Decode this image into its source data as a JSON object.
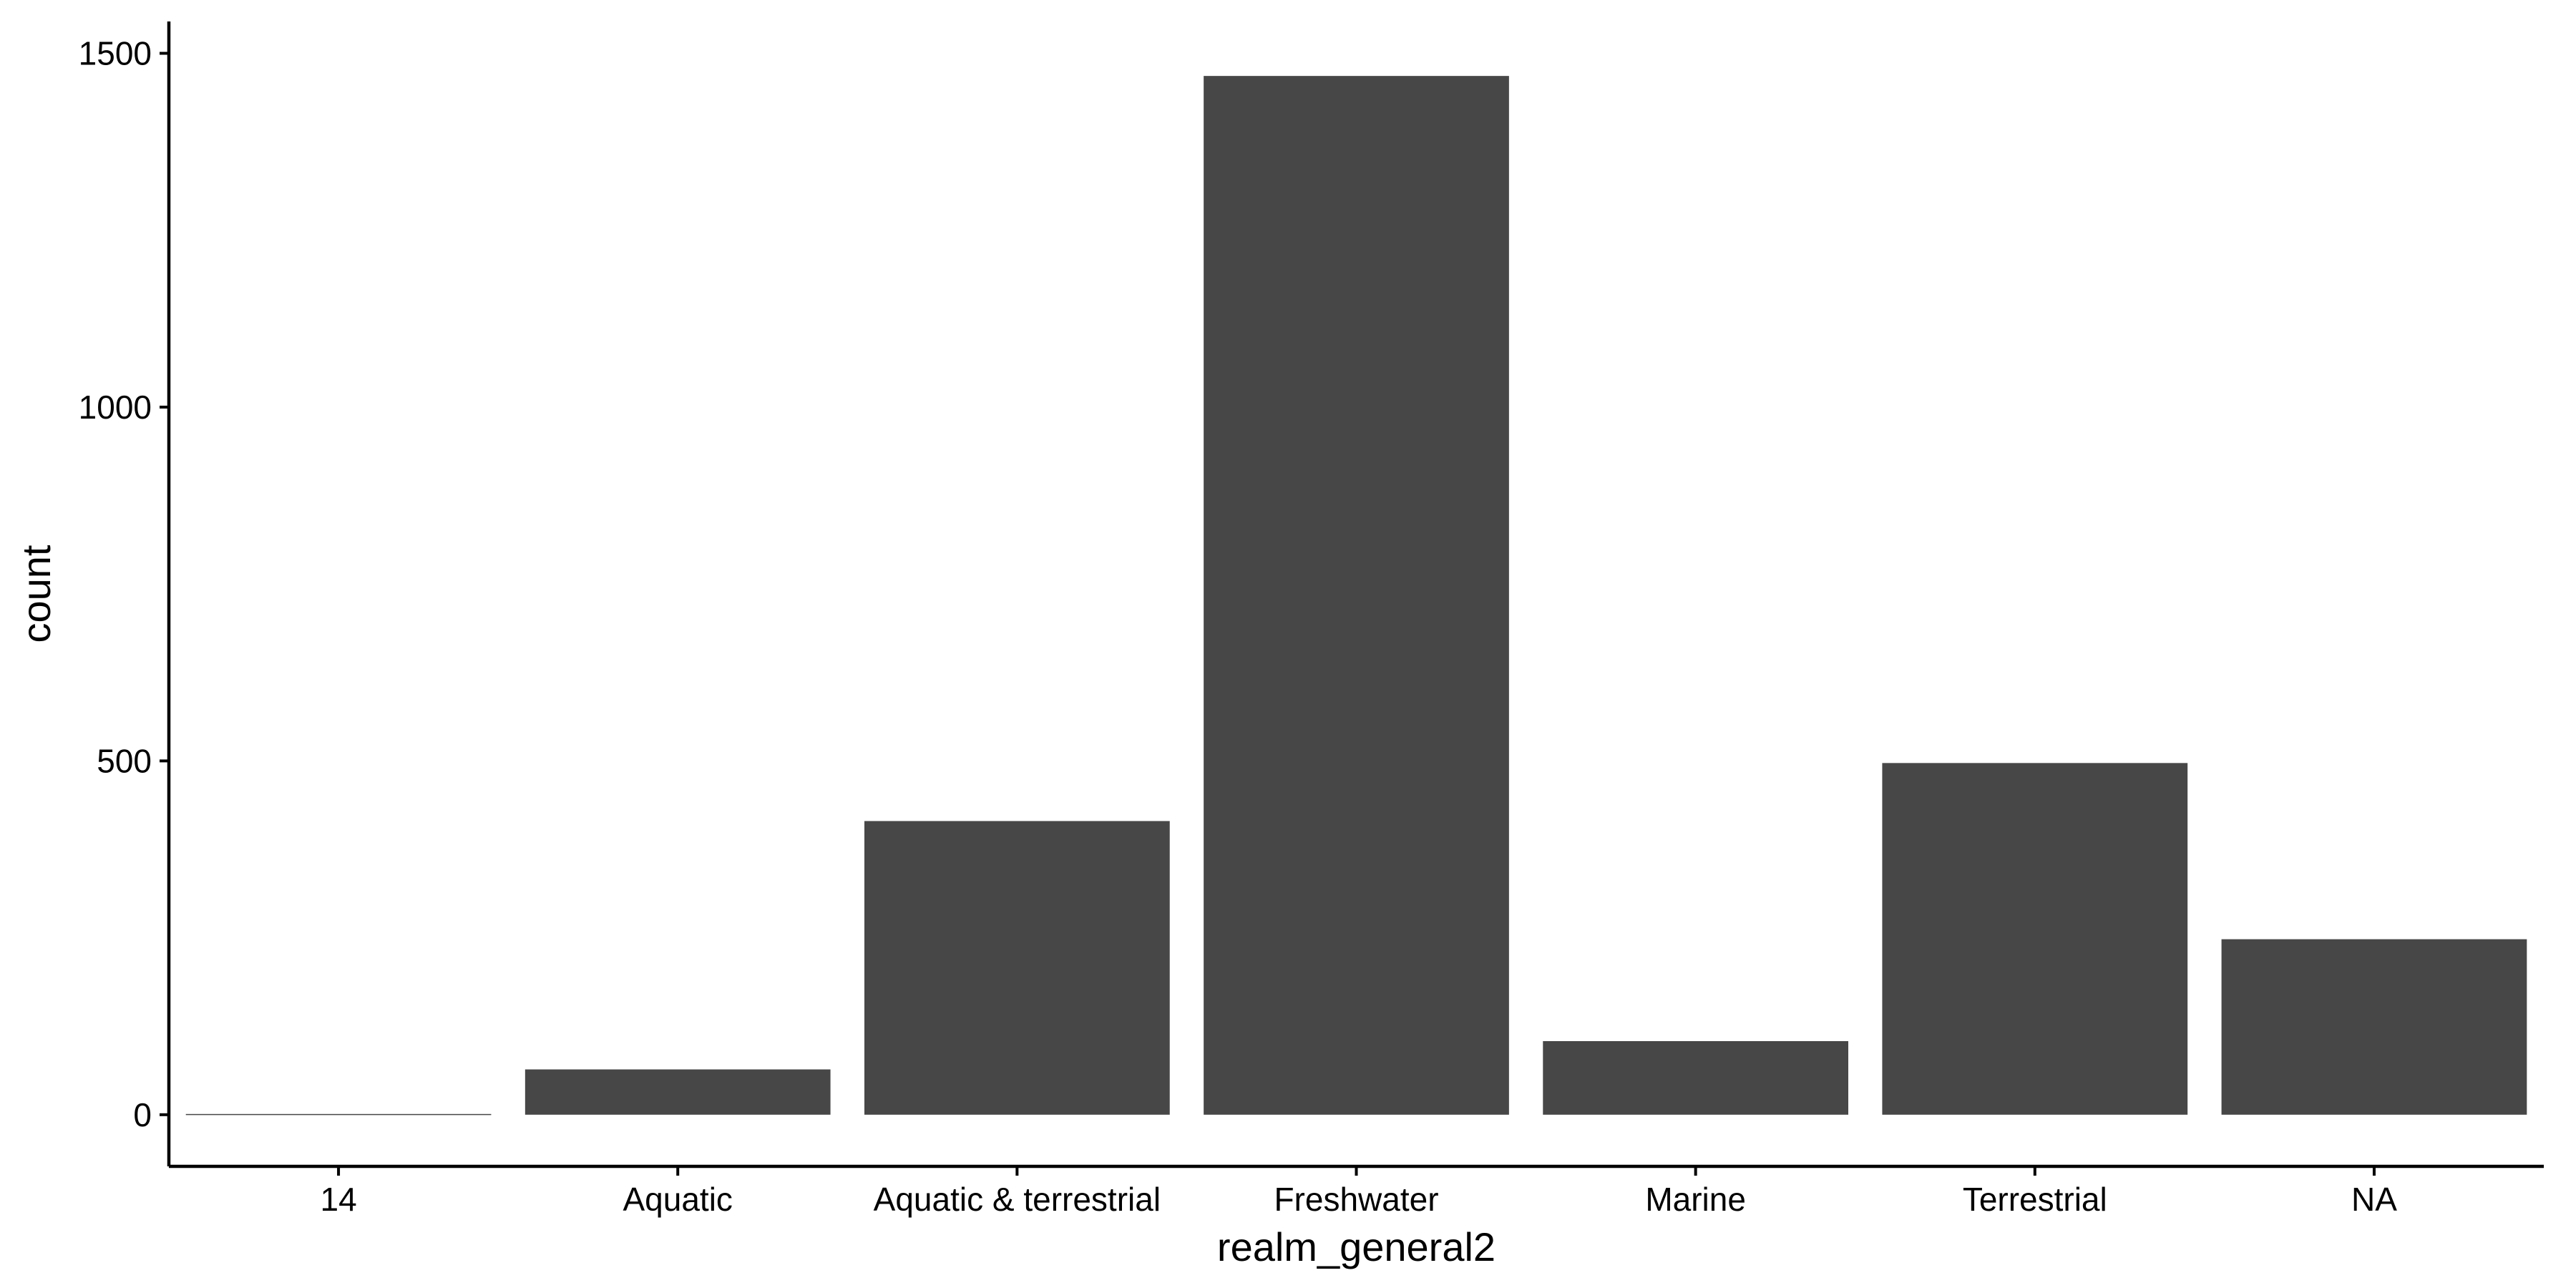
{
  "chart_data": {
    "type": "bar",
    "categories": [
      "14",
      "Aquatic",
      "Aquatic & terrestrial",
      "Freshwater",
      "Marine",
      "Terrestrial",
      "NA"
    ],
    "values": [
      1,
      64,
      415,
      1468,
      104,
      497,
      248
    ],
    "title": "",
    "xlabel": "realm_general2",
    "ylabel": "count",
    "ylim": [
      -73,
      1545
    ],
    "yticks": [
      0,
      500,
      1000,
      1500
    ],
    "bar_color": "#474747",
    "grid": false,
    "legend": "none"
  }
}
